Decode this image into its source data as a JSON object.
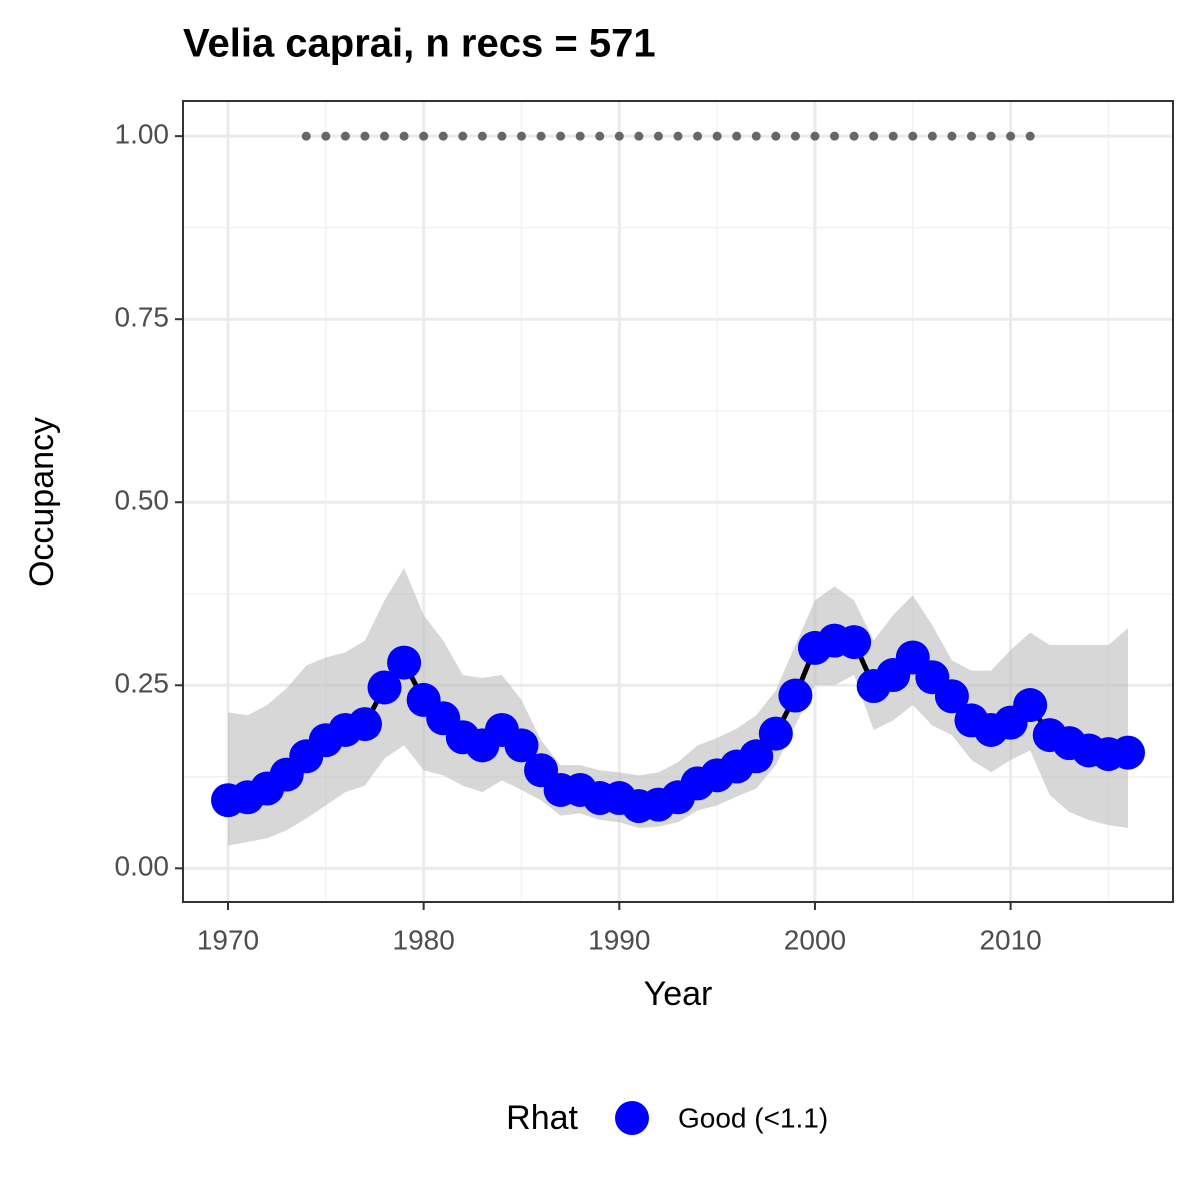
{
  "chart_data": {
    "type": "line",
    "title": "Velia caprai, n recs = 571",
    "x_label": "Year",
    "y_label": "Occupancy",
    "legend_title": "Rhat",
    "x": [
      1970,
      1971,
      1972,
      1973,
      1974,
      1975,
      1976,
      1977,
      1978,
      1979,
      1980,
      1981,
      1982,
      1983,
      1984,
      1985,
      1986,
      1987,
      1988,
      1989,
      1990,
      1991,
      1992,
      1993,
      1994,
      1995,
      1996,
      1997,
      1998,
      1999,
      2000,
      2001,
      2002,
      2003,
      2004,
      2005,
      2006,
      2007,
      2008,
      2009,
      2010,
      2011,
      2012,
      2013,
      2014,
      2015,
      2016
    ],
    "series": [
      {
        "name": "Good (<1.1)",
        "color": "#0000ff",
        "line_color": "#000000",
        "ci_color": "#bdbdbd",
        "values": [
          0.093,
          0.097,
          0.109,
          0.128,
          0.153,
          0.175,
          0.189,
          0.197,
          0.247,
          0.281,
          0.23,
          0.205,
          0.179,
          0.168,
          0.189,
          0.168,
          0.134,
          0.107,
          0.107,
          0.096,
          0.096,
          0.085,
          0.087,
          0.097,
          0.116,
          0.127,
          0.139,
          0.153,
          0.184,
          0.236,
          0.301,
          0.311,
          0.309,
          0.249,
          0.264,
          0.288,
          0.261,
          0.235,
          0.202,
          0.189,
          0.199,
          0.223,
          0.182,
          0.171,
          0.161,
          0.156,
          0.158
        ],
        "upper": [
          0.213,
          0.209,
          0.223,
          0.246,
          0.277,
          0.288,
          0.295,
          0.311,
          0.366,
          0.41,
          0.346,
          0.311,
          0.264,
          0.26,
          0.264,
          0.23,
          0.175,
          0.141,
          0.141,
          0.134,
          0.131,
          0.127,
          0.131,
          0.145,
          0.168,
          0.178,
          0.191,
          0.209,
          0.243,
          0.305,
          0.366,
          0.385,
          0.366,
          0.311,
          0.346,
          0.373,
          0.332,
          0.284,
          0.27,
          0.27,
          0.298,
          0.322,
          0.305,
          0.305,
          0.305,
          0.305,
          0.328
        ],
        "lower": [
          0.031,
          0.036,
          0.041,
          0.052,
          0.068,
          0.086,
          0.104,
          0.113,
          0.15,
          0.168,
          0.134,
          0.127,
          0.113,
          0.104,
          0.12,
          0.107,
          0.093,
          0.072,
          0.075,
          0.066,
          0.063,
          0.055,
          0.057,
          0.063,
          0.079,
          0.086,
          0.098,
          0.109,
          0.141,
          0.195,
          0.25,
          0.25,
          0.264,
          0.189,
          0.202,
          0.223,
          0.195,
          0.182,
          0.148,
          0.131,
          0.148,
          0.161,
          0.1,
          0.077,
          0.066,
          0.059,
          0.055
        ]
      }
    ],
    "records": {
      "color": "#666666",
      "x": [
        1974,
        1975,
        1976,
        1977,
        1978,
        1979,
        1980,
        1981,
        1982,
        1983,
        1984,
        1985,
        1986,
        1987,
        1988,
        1989,
        1990,
        1991,
        1992,
        1993,
        1994,
        1995,
        1996,
        1997,
        1998,
        1999,
        2000,
        2001,
        2002,
        2003,
        2004,
        2005,
        2006,
        2007,
        2008,
        2009,
        2010,
        2011
      ],
      "values": [
        1,
        1,
        1,
        1,
        1,
        1,
        1,
        1,
        1,
        1,
        1,
        1,
        1,
        1,
        1,
        1,
        1,
        1,
        1,
        1,
        1,
        1,
        1,
        1,
        1,
        1,
        1,
        1,
        1,
        1,
        1,
        1,
        1,
        1,
        1,
        1,
        1,
        1
      ]
    },
    "xlim": [
      1967.7,
      2018.3
    ],
    "ylim": [
      -0.046,
      1.048
    ],
    "xticks": [
      1970,
      1980,
      1990,
      2000,
      2010
    ],
    "yticks": [
      {
        "value": 0,
        "label": "0.00"
      },
      {
        "value": 0.25,
        "label": "0.25"
      },
      {
        "value": 0.5,
        "label": "0.50"
      },
      {
        "value": 0.75,
        "label": "0.75"
      },
      {
        "value": 1,
        "label": "1.00"
      }
    ],
    "minor_xticks": [
      1975,
      1985,
      1995,
      2005,
      2015
    ],
    "minor_yticks": [
      0.125,
      0.375,
      0.625,
      0.875
    ],
    "grid": true,
    "legend_position": "bottom"
  }
}
